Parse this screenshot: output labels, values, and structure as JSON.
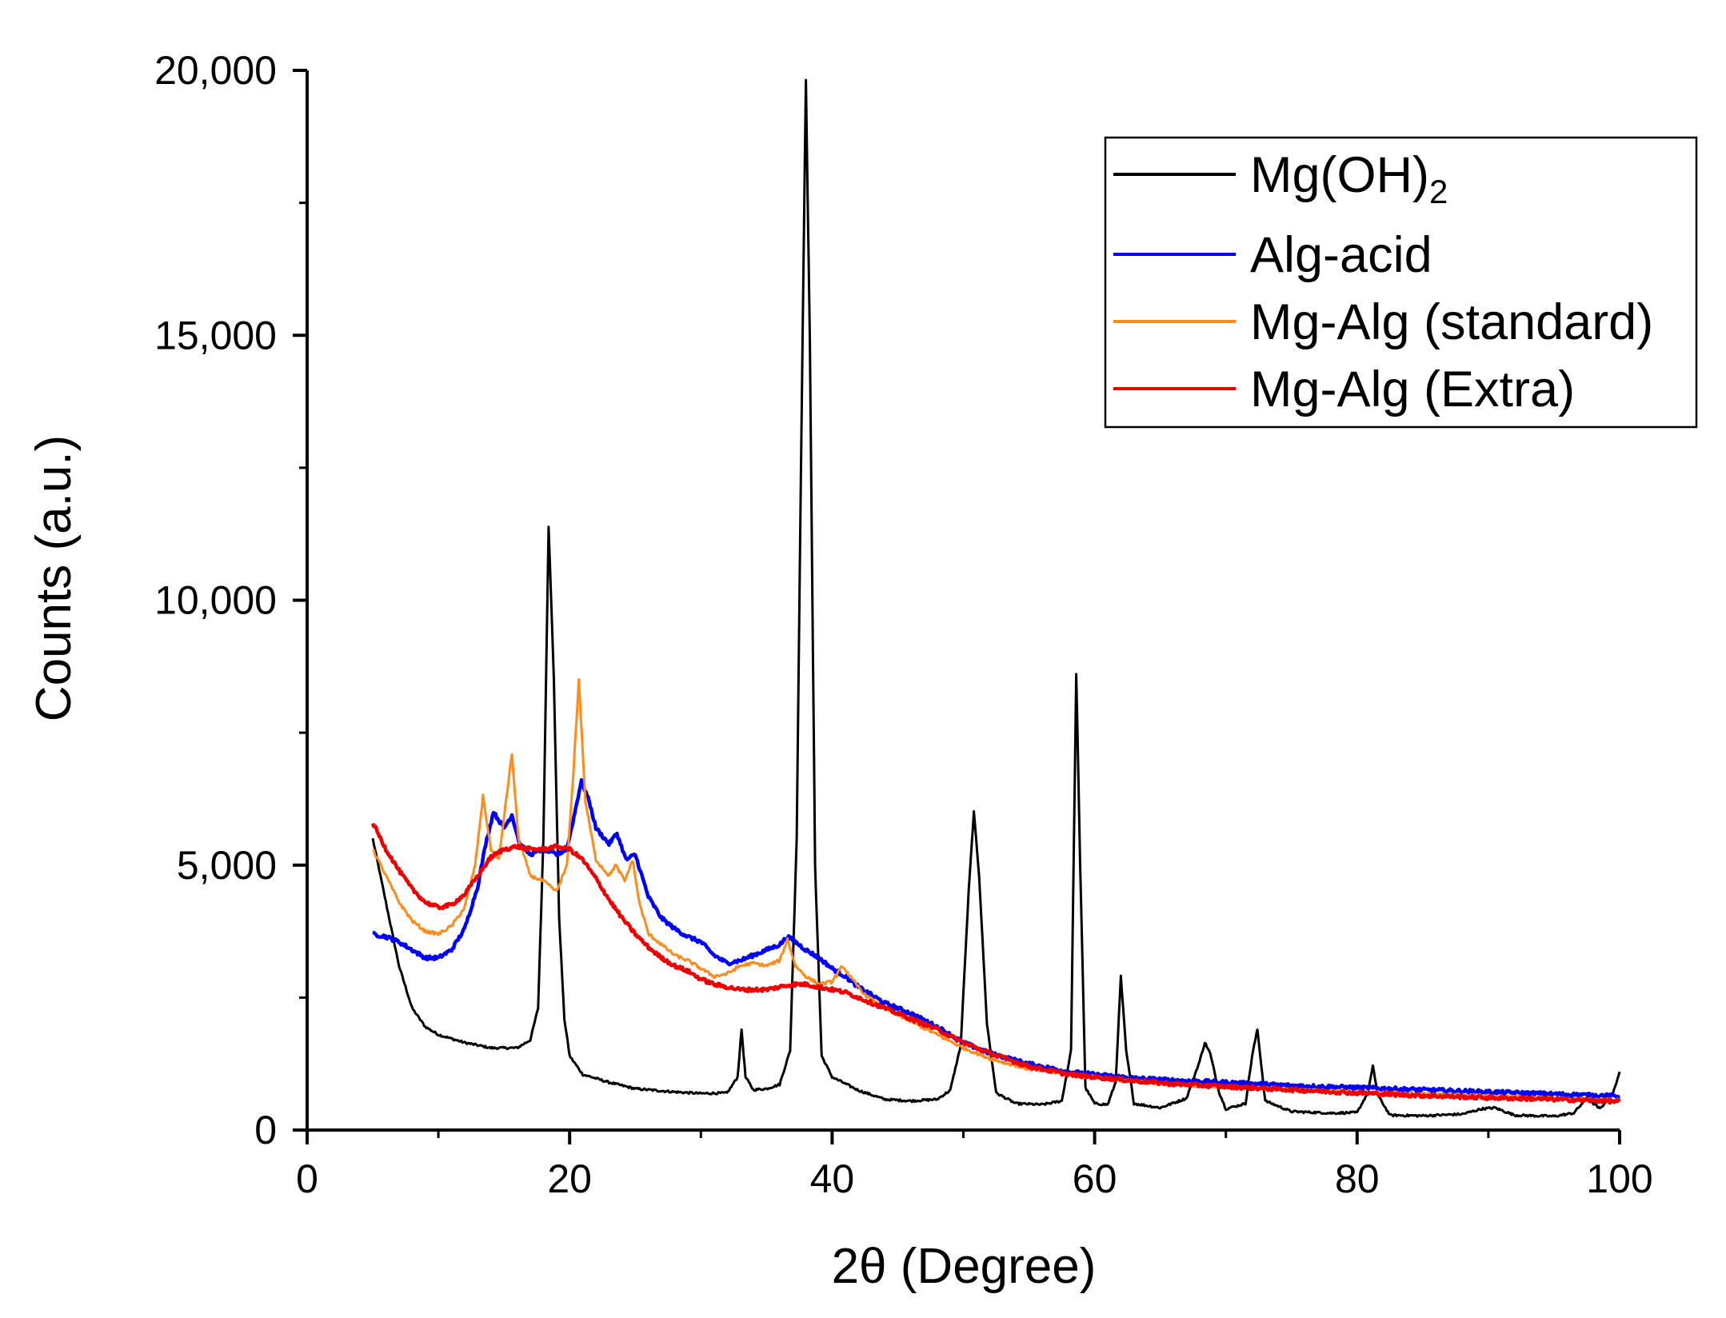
{
  "chart_data": {
    "type": "line",
    "title": "",
    "xlabel": "2θ (Degree)",
    "ylabel": "Counts (a.u.)",
    "xlim": [
      0,
      100
    ],
    "ylim": [
      0,
      20000
    ],
    "xticks": [
      0,
      20,
      40,
      60,
      80,
      100
    ],
    "xtick_labels": [
      "0",
      "20",
      "40",
      "60",
      "80",
      "100"
    ],
    "yticks": [
      0,
      5000,
      10000,
      15000,
      20000
    ],
    "ytick_labels": [
      "0",
      "5,000",
      "10,000",
      "15,000",
      "20,000"
    ],
    "grid": false,
    "legend_position": "top-right",
    "series": [
      {
        "name": "Mg(OH)",
        "name_subscript": "2",
        "color": "#000000",
        "x": [
          5,
          6,
          7,
          8,
          9,
          10,
          12,
          14,
          16,
          17,
          17.6,
          18.0,
          18.4,
          18.8,
          19.2,
          19.6,
          20,
          21,
          23,
          25,
          28,
          30,
          32,
          32.8,
          33.1,
          33.4,
          34,
          35,
          36,
          36.8,
          37.3,
          37.7,
          38.0,
          38.3,
          38.7,
          39.2,
          40,
          42,
          44,
          46,
          48,
          49,
          49.8,
          50.4,
          50.8,
          51.2,
          51.8,
          52.5,
          54,
          56,
          57.5,
          58.2,
          58.6,
          58.9,
          59.3,
          60,
          61,
          61.6,
          62.0,
          62.4,
          63,
          65,
          67,
          68,
          68.4,
          68.8,
          69.5,
          70,
          71.5,
          72.0,
          72.4,
          73,
          75,
          78,
          80,
          80.8,
          81.2,
          81.6,
          82.5,
          85,
          88,
          89.5,
          90.5,
          92,
          95,
          96.5,
          97.5,
          98.5,
          99.5,
          100
        ],
        "y": [
          5500,
          4300,
          3100,
          2300,
          1950,
          1800,
          1650,
          1550,
          1550,
          1700,
          2300,
          5500,
          11400,
          8500,
          4000,
          2100,
          1400,
          1050,
          900,
          780,
          720,
          690,
          700,
          1000,
          1900,
          1000,
          760,
          780,
          860,
          1500,
          5500,
          14000,
          19800,
          15000,
          5000,
          1400,
          1000,
          750,
          580,
          550,
          580,
          750,
          1600,
          4500,
          6000,
          4800,
          2000,
          700,
          500,
          480,
          550,
          1500,
          8600,
          5000,
          800,
          500,
          480,
          900,
          2900,
          1500,
          500,
          420,
          600,
          1300,
          1650,
          1450,
          700,
          400,
          500,
          1400,
          1900,
          550,
          350,
          320,
          330,
          700,
          1200,
          650,
          280,
          270,
          300,
          400,
          420,
          280,
          260,
          320,
          600,
          400,
          700,
          1100
        ]
      },
      {
        "name": "Alg-acid",
        "color": "#0000ff",
        "x": [
          5,
          6,
          7,
          8,
          9,
          10,
          11,
          12,
          13,
          13.6,
          14.2,
          15,
          15.6,
          16.2,
          17,
          18,
          19,
          19.8,
          20.4,
          20.9,
          21.5,
          22,
          23,
          23.6,
          24.3,
          25,
          25.5,
          26,
          27,
          28,
          29,
          30,
          31,
          32,
          33,
          34,
          35,
          36,
          36.6,
          37.2,
          38,
          39,
          40,
          41,
          42,
          44,
          46,
          48,
          50,
          52,
          55,
          58,
          60,
          63,
          66,
          70,
          75,
          80,
          85,
          90,
          95,
          100
        ],
        "y": [
          3700,
          3650,
          3550,
          3400,
          3250,
          3250,
          3400,
          3800,
          4600,
          5400,
          6000,
          5700,
          5950,
          5400,
          5200,
          5300,
          5200,
          5300,
          6000,
          6600,
          6200,
          5700,
          5400,
          5600,
          5100,
          5200,
          4800,
          4400,
          4000,
          3800,
          3650,
          3550,
          3300,
          3150,
          3200,
          3300,
          3400,
          3500,
          3650,
          3550,
          3400,
          3250,
          3050,
          2900,
          2700,
          2400,
          2200,
          1950,
          1650,
          1450,
          1250,
          1100,
          1050,
          980,
          940,
          900,
          840,
          800,
          760,
          720,
          680,
          640
        ]
      },
      {
        "name": "Mg-Alg (standard)",
        "color": "#ff8c1a",
        "x": [
          5,
          6,
          7,
          8,
          9,
          10,
          11,
          12,
          12.8,
          13.4,
          14,
          14.6,
          15.2,
          15.6,
          16.1,
          17,
          18,
          19,
          19.8,
          20.3,
          20.7,
          21.2,
          22,
          23,
          23.5,
          24.2,
          24.8,
          25.3,
          26,
          27,
          28,
          29,
          30,
          31,
          32,
          33,
          34,
          35,
          36,
          36.6,
          37.2,
          38,
          39,
          40,
          40.8,
          41.5,
          42.5,
          44,
          46,
          48,
          50,
          52,
          55,
          58,
          60,
          63,
          66,
          70,
          75,
          80,
          85,
          90,
          95,
          100
        ],
        "y": [
          5300,
          4800,
          4300,
          3950,
          3750,
          3700,
          3850,
          4200,
          5000,
          6300,
          5300,
          5100,
          6300,
          7100,
          5500,
          4800,
          4700,
          4500,
          5000,
          6800,
          8500,
          6200,
          5100,
          4800,
          5000,
          4700,
          5100,
          4300,
          3700,
          3500,
          3300,
          3200,
          3050,
          2900,
          2950,
          3100,
          3150,
          3100,
          3200,
          3600,
          3100,
          2900,
          2750,
          2800,
          3100,
          2850,
          2550,
          2300,
          2050,
          1800,
          1550,
          1350,
          1150,
          1050,
          1000,
          920,
          860,
          820,
          760,
          720,
          680,
          640,
          600,
          560
        ]
      },
      {
        "name": "Mg-Alg (Extra)",
        "color": "#ee0000",
        "x": [
          5,
          6,
          7,
          8,
          9,
          10,
          11,
          12,
          13,
          14,
          15,
          16,
          17,
          18,
          19,
          20,
          21,
          22,
          23,
          24,
          25,
          26,
          27,
          28,
          29,
          30,
          31,
          32,
          33,
          34,
          35,
          36,
          37,
          38,
          39,
          40,
          41,
          42,
          43,
          44,
          45,
          46,
          48,
          50,
          52,
          55,
          58,
          60,
          63,
          66,
          70,
          75,
          80,
          85,
          90,
          95,
          100
        ],
        "y": [
          5800,
          5300,
          4900,
          4550,
          4300,
          4200,
          4250,
          4450,
          4800,
          5150,
          5300,
          5350,
          5300,
          5300,
          5350,
          5300,
          5100,
          4750,
          4350,
          4000,
          3700,
          3450,
          3250,
          3100,
          3000,
          2850,
          2750,
          2700,
          2650,
          2650,
          2650,
          2700,
          2750,
          2750,
          2700,
          2650,
          2600,
          2500,
          2400,
          2300,
          2200,
          2100,
          1900,
          1650,
          1450,
          1200,
          1050,
          1000,
          930,
          870,
          820,
          760,
          700,
          650,
          610,
          580,
          540
        ]
      }
    ]
  }
}
